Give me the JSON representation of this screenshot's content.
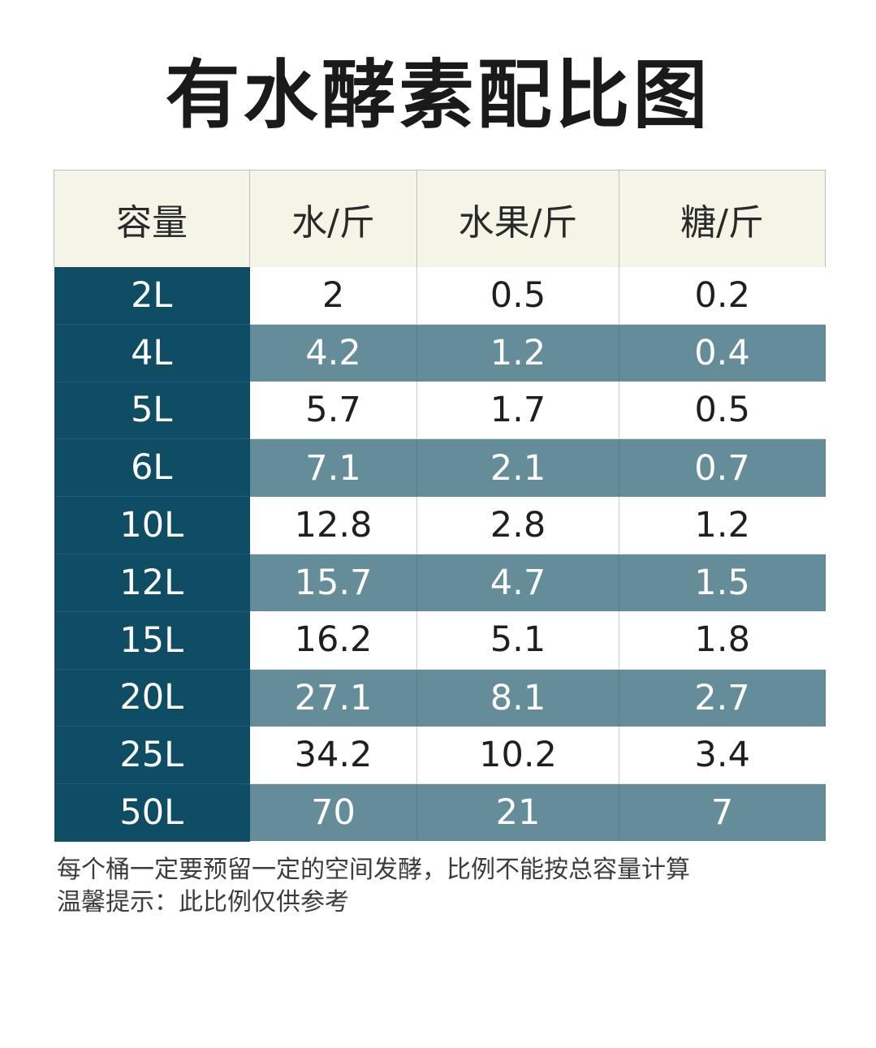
{
  "title": "有水酵素配比图",
  "table": {
    "headers": [
      "容量",
      "水/斤",
      "水果/斤",
      "糖/斤"
    ],
    "rows": [
      [
        "2L",
        "2",
        "0.5",
        "0.2"
      ],
      [
        "4L",
        "4.2",
        "1.2",
        "0.4"
      ],
      [
        "5L",
        "5.7",
        "1.7",
        "0.5"
      ],
      [
        "6L",
        "7.1",
        "2.1",
        "0.7"
      ],
      [
        "10L",
        "12.8",
        "2.8",
        "1.2"
      ],
      [
        "12L",
        "15.7",
        "4.7",
        "1.5"
      ],
      [
        "15L",
        "16.2",
        "5.1",
        "1.8"
      ],
      [
        "20L",
        "27.1",
        "8.1",
        "2.7"
      ],
      [
        "25L",
        "34.2",
        "10.2",
        "3.4"
      ],
      [
        "50L",
        "70",
        "21",
        "7"
      ]
    ]
  },
  "notes": [
    "每个桶一定要预留一定的空间发酵，比例不能按总容量计算",
    "温馨提示：此比例仅供参考"
  ],
  "colors": {
    "capacity_column": "#0e4d63",
    "striped_row": "#658c99",
    "header_background": "#f4f4e7",
    "plain_row": "#ffffff"
  }
}
